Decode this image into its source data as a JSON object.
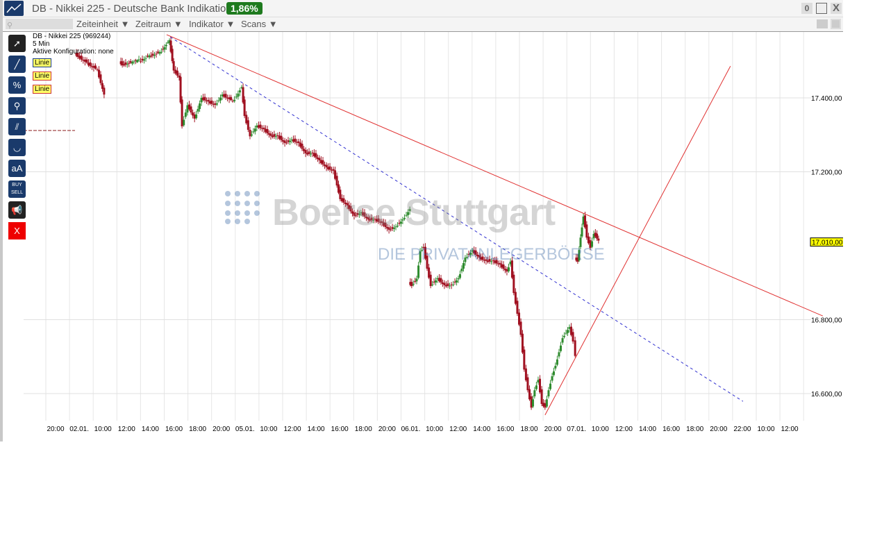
{
  "window": {
    "title": "DB - Nikkei 225 - Deutsche Bank Indikation",
    "change_badge": "1,86%",
    "counter": "0",
    "close_label": "X"
  },
  "toolbar": {
    "menus": [
      "Zeiteinheit ▼",
      "Zeitraum ▼",
      "Indikator ▼",
      "Scans ▼"
    ]
  },
  "tools": [
    "arrow",
    "line",
    "%",
    "magnifier",
    "parallel",
    "curve",
    "aA",
    "BUY SELL",
    "megaphone",
    "X"
  ],
  "info": {
    "instrument": "DB - Nikkei 225 (969244)",
    "interval": "5 Min",
    "config": "Aktive Konfiguration: none",
    "drawings": [
      "Linie",
      "Linie",
      "Linie"
    ]
  },
  "watermark": {
    "name": "Boerse Stuttgart",
    "tagline": "DIE PRIVATANLEGERBÖRSE"
  },
  "colors": {
    "up": "#2e8b2e",
    "down": "#a01020",
    "trend": "#e03030",
    "dashed": "#3030d0",
    "badge": "#1e7a1e",
    "price_tag": "#ffff00"
  },
  "chart_data": {
    "type": "candlestick",
    "x_tick_labels": [
      "20:00",
      "02.01.",
      "10:00",
      "12:00",
      "14:00",
      "16:00",
      "18:00",
      "20:00",
      "05.01.",
      "10:00",
      "12:00",
      "14:00",
      "16:00",
      "18:00",
      "20:00",
      "06.01.",
      "10:00",
      "12:00",
      "14:00",
      "16:00",
      "18:00",
      "20:00",
      "07.01.",
      "10:00",
      "12:00",
      "14:00",
      "16:00",
      "18:00",
      "20:00",
      "22:00",
      "10:00",
      "12:00"
    ],
    "y_ticks": [
      {
        "v": 17400,
        "label": "17.400,00"
      },
      {
        "v": 17200,
        "label": "17.200,00"
      },
      {
        "v": 16800,
        "label": "16.800,00"
      },
      {
        "v": 16600,
        "label": "16.600,00"
      }
    ],
    "ylim": [
      16510,
      17580
    ],
    "last_price": {
      "v": 17010,
      "label": "17.010,00"
    },
    "grid": true,
    "segments": [
      [
        [
          0.94,
          17515
        ],
        [
          1.32,
          17496
        ],
        [
          1.76,
          17477
        ],
        [
          2.05,
          17411
        ]
      ],
      [
        [
          2.82,
          17492
        ],
        [
          3.52,
          17500
        ],
        [
          3.96,
          17515
        ],
        [
          4.4,
          17524
        ],
        [
          4.81,
          17556
        ],
        [
          4.99,
          17477
        ],
        [
          5.22,
          17458
        ],
        [
          5.34,
          17327
        ],
        [
          5.57,
          17383
        ],
        [
          5.87,
          17346
        ],
        [
          6.16,
          17402
        ],
        [
          6.45,
          17392
        ],
        [
          6.74,
          17383
        ],
        [
          7.04,
          17411
        ],
        [
          7.48,
          17392
        ],
        [
          7.86,
          17430
        ],
        [
          7.98,
          17355
        ],
        [
          8.21,
          17299
        ],
        [
          8.5,
          17327
        ],
        [
          8.8,
          17317
        ],
        [
          9.09,
          17299
        ],
        [
          9.38,
          17299
        ],
        [
          9.68,
          17280
        ],
        [
          9.97,
          17289
        ],
        [
          10.26,
          17280
        ],
        [
          10.56,
          17252
        ],
        [
          10.85,
          17252
        ],
        [
          11.14,
          17233
        ],
        [
          11.44,
          17214
        ],
        [
          11.73,
          17205
        ],
        [
          11.88,
          17167
        ],
        [
          12.02,
          17130
        ],
        [
          12.32,
          17111
        ],
        [
          12.61,
          17083
        ],
        [
          12.9,
          17092
        ],
        [
          13.2,
          17073
        ],
        [
          13.49,
          17073
        ],
        [
          13.78,
          17064
        ],
        [
          14.08,
          17045
        ],
        [
          14.37,
          17054
        ],
        [
          14.66,
          17073
        ],
        [
          14.96,
          17101
        ]
      ],
      [
        [
          15.04,
          16895
        ],
        [
          15.25,
          16914
        ],
        [
          15.4,
          16989
        ],
        [
          15.54,
          16998
        ],
        [
          15.69,
          16942
        ],
        [
          15.84,
          16895
        ],
        [
          16.13,
          16914
        ],
        [
          16.42,
          16895
        ],
        [
          16.72,
          16895
        ],
        [
          17.01,
          16914
        ],
        [
          17.3,
          16970
        ],
        [
          17.6,
          16989
        ],
        [
          17.89,
          16970
        ],
        [
          18.18,
          16961
        ],
        [
          18.48,
          16961
        ],
        [
          18.77,
          16951
        ],
        [
          19.06,
          16932
        ],
        [
          19.21,
          16961
        ],
        [
          19.35,
          16876
        ],
        [
          19.5,
          16820
        ],
        [
          19.65,
          16763
        ],
        [
          19.79,
          16669
        ],
        [
          19.94,
          16613
        ],
        [
          20.09,
          16566
        ],
        [
          20.23,
          16613
        ],
        [
          20.38,
          16641
        ],
        [
          20.53,
          16576
        ],
        [
          20.67,
          16566
        ],
        [
          20.82,
          16613
        ],
        [
          20.97,
          16651
        ],
        [
          21.11,
          16679
        ],
        [
          21.26,
          16716
        ],
        [
          21.41,
          16754
        ],
        [
          21.7,
          16782
        ],
        [
          21.85,
          16745
        ],
        [
          21.94,
          16707
        ]
      ],
      [
        [
          22.05,
          16961
        ],
        [
          22.17,
          17026
        ],
        [
          22.29,
          17083
        ],
        [
          22.43,
          17026
        ],
        [
          22.58,
          16998
        ],
        [
          22.73,
          17036
        ],
        [
          22.93,
          17017
        ]
      ]
    ],
    "trendlines": [
      {
        "style": "solid",
        "color": "#e03030",
        "from": [
          4.69,
          17571
        ],
        "to": [
          32.4,
          16810
        ]
      },
      {
        "style": "dashed",
        "color": "#3030d0",
        "from": [
          4.84,
          17565
        ],
        "to": [
          29.03,
          16579
        ]
      },
      {
        "style": "solid",
        "color": "#e03030",
        "from": [
          20.67,
          16542
        ],
        "to": [
          28.5,
          17486
        ]
      }
    ]
  }
}
